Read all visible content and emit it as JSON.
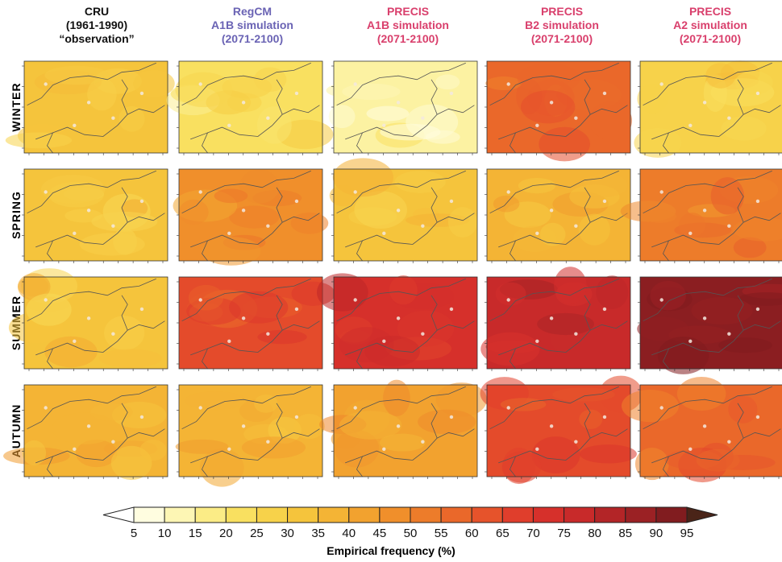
{
  "columns": [
    {
      "lines": [
        "CRU",
        "(1961-1990)",
        "“observation”"
      ],
      "color": "#111111"
    },
    {
      "lines": [
        "RegCM",
        "A1B simulation",
        "(2071-2100)"
      ],
      "color": "#6a63b4"
    },
    {
      "lines": [
        "PRECIS",
        "A1B simulation",
        "(2071-2100)"
      ],
      "color": "#d93f6c"
    },
    {
      "lines": [
        "PRECIS",
        "B2 simulation",
        "(2071-2100)"
      ],
      "color": "#d93f6c"
    },
    {
      "lines": [
        "PRECIS",
        "A2 simulation",
        "(2071-2100)"
      ],
      "color": "#d93f6c"
    }
  ],
  "rows": [
    "WINTER",
    "SPRING",
    "SUMMER",
    "AUTUMN"
  ],
  "panel_levels": [
    [
      30,
      20,
      12,
      55,
      25
    ],
    [
      30,
      45,
      30,
      35,
      50
    ],
    [
      30,
      62,
      70,
      75,
      88
    ],
    [
      35,
      35,
      40,
      62,
      55
    ]
  ],
  "colorbar": {
    "ticks": [
      "5",
      "10",
      "15",
      "20",
      "25",
      "30",
      "35",
      "40",
      "45",
      "50",
      "55",
      "60",
      "65",
      "70",
      "75",
      "80",
      "85",
      "90",
      "95"
    ],
    "colors": [
      "#fffde0",
      "#fdf6b4",
      "#fbec86",
      "#f9e060",
      "#f7d24a",
      "#f5c43c",
      "#f4b435",
      "#f2a22f",
      "#f08f2b",
      "#ed7c2a",
      "#ea682a",
      "#e6532b",
      "#e03e2c",
      "#d6302b",
      "#c82a2a",
      "#b32527",
      "#9b2124",
      "#811c1f"
    ],
    "arrow_low": "#ffffff",
    "arrow_high": "#4a2418",
    "title": "Empirical frequency (%)"
  }
}
